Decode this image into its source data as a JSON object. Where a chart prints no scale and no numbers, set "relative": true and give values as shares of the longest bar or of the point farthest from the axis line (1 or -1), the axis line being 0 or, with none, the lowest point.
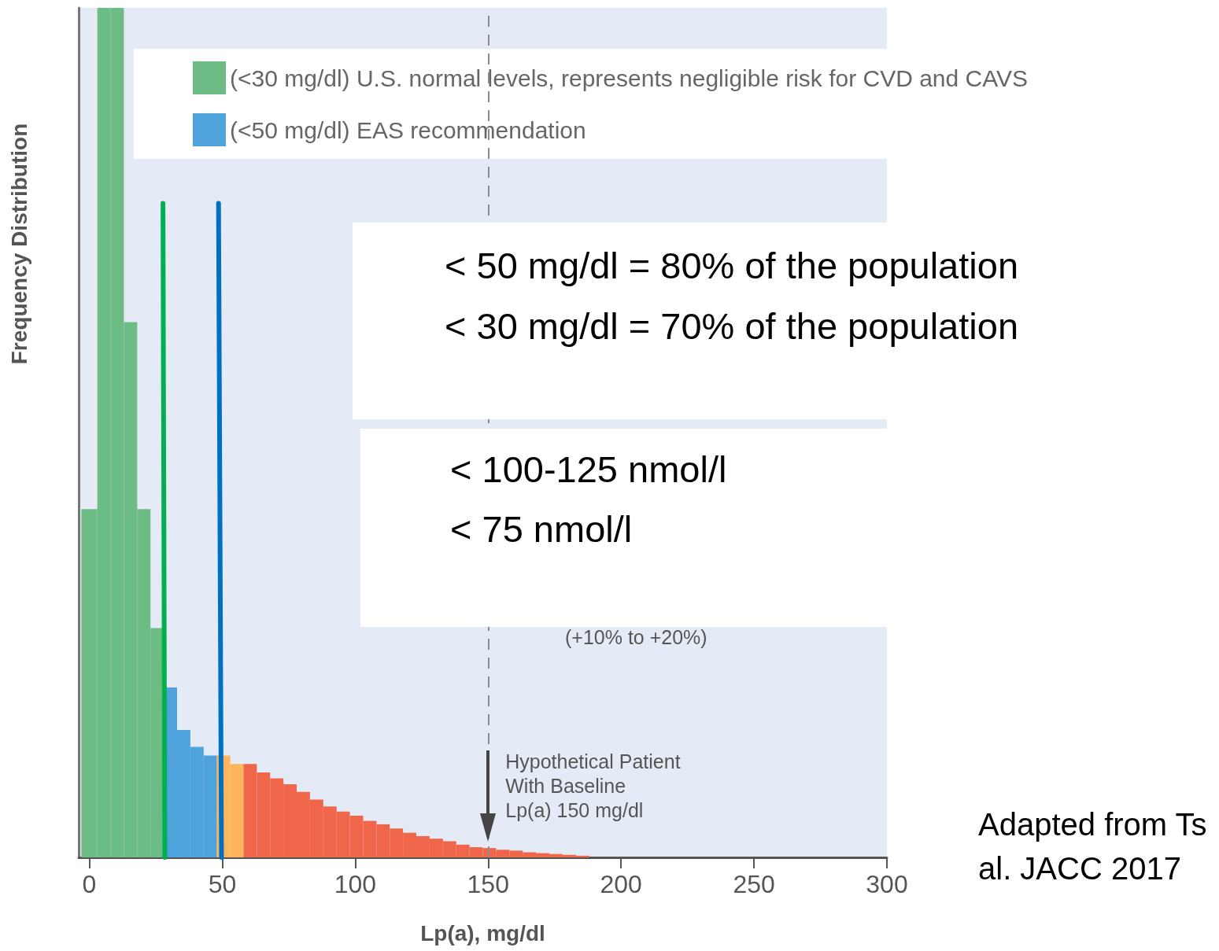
{
  "chart_data": {
    "type": "histogram",
    "relative": true,
    "xlabel": "Lp(a), mg/dl",
    "ylabel": "Frequency Distribution",
    "xlim": [
      -4,
      300
    ],
    "xticks": [
      0,
      50,
      100,
      150,
      200,
      250,
      300
    ],
    "grid": false,
    "legend": "top",
    "series": [
      {
        "name": "(<30 mg/dl) U.S. normal levels, represents negligible risk for CVD and CAVS",
        "color": "#6dbb85",
        "bins": [
          -3,
          3,
          8,
          13,
          18,
          23,
          28
        ],
        "values": [
          0.41,
          1,
          1,
          0.63,
          0.41,
          0.27
        ]
      },
      {
        "name": "(<50 mg/dl) EAS recommendation",
        "color": "#4fa3dc",
        "bins": [
          28,
          33,
          38,
          43,
          48
        ],
        "values": [
          0.2,
          0.15,
          0.13,
          0.12
        ]
      },
      {
        "color": "#fdb45c",
        "bins": [
          48,
          53,
          58
        ],
        "values": [
          0.12,
          0.11
        ]
      },
      {
        "color": "#f0664a",
        "bins": [
          58,
          63,
          68,
          73,
          78,
          83,
          88,
          93,
          98,
          103,
          108,
          113,
          118,
          123,
          128,
          133,
          138,
          143,
          148,
          153,
          158,
          163,
          168,
          173,
          178,
          183,
          188
        ],
        "values": [
          0.11,
          0.1,
          0.093,
          0.086,
          0.077,
          0.068,
          0.06,
          0.054,
          0.049,
          0.043,
          0.039,
          0.034,
          0.029,
          0.025,
          0.022,
          0.019,
          0.015,
          0.012,
          0.011,
          0.009,
          0.008,
          0.006,
          0.005,
          0.004,
          0.003,
          0.002
        ]
      },
      {
        "type": "line",
        "color": "#00b050",
        "marker": "none",
        "x": [
          28.4,
          27.7
        ],
        "values": [
          0,
          0.77
        ]
      },
      {
        "type": "line",
        "color": "#0070c0",
        "marker": "none",
        "x": [
          49.7,
          48.6
        ],
        "values": [
          0,
          0.77
        ]
      }
    ],
    "ref_lines": [
      {
        "axis": "x",
        "value": 150,
        "color": "#8c8c8c",
        "line_style": "dashed"
      }
    ],
    "annotations": [
      "< 50 mg/dl = 80% of the population\n< 30 mg/dl = 70% of the population",
      "< 100-125 nmol/l\n< 75 nmol/l",
      "(+10% to +20%)",
      {
        "text": "Hypothetical Patient\nWith Baseline\nLp(a) 150 mg/dl",
        "x": 150,
        "y": 0
      },
      "Adapted from Ts\nal. JACC 2017"
    ]
  }
}
